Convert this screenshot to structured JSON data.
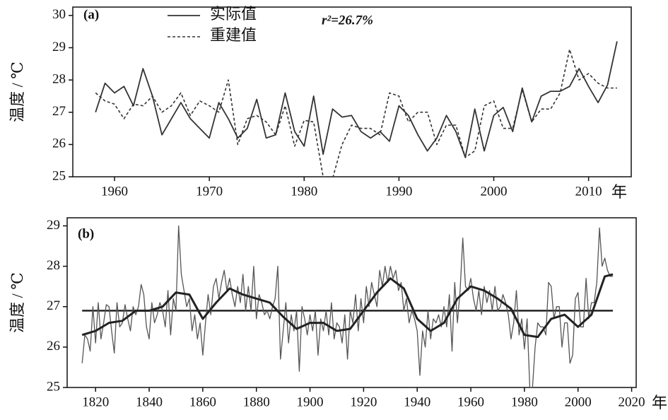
{
  "chart_data": [
    {
      "type": "line",
      "label": "(a)",
      "ylabel": "温度 / ℃",
      "xunit": "年",
      "annotation": "r²=26.7%",
      "xlim": [
        1955.6,
        2014.5
      ],
      "ylim": [
        25,
        30.26
      ],
      "xticks": [
        1960,
        1970,
        1980,
        1990,
        2000,
        2010
      ],
      "yticks": [
        25,
        26,
        27,
        28,
        29,
        30
      ],
      "series": [
        {
          "name": "实际值",
          "color": "#333333",
          "style": "solid",
          "x": [
            1958,
            1959,
            1960,
            1961,
            1962,
            1963,
            1964,
            1965,
            1966,
            1967,
            1968,
            1969,
            1970,
            1971,
            1972,
            1973,
            1974,
            1975,
            1976,
            1977,
            1978,
            1979,
            1980,
            1981,
            1982,
            1983,
            1984,
            1985,
            1986,
            1987,
            1988,
            1989,
            1990,
            1991,
            1992,
            1993,
            1994,
            1995,
            1996,
            1997,
            1998,
            1999,
            2000,
            2001,
            2002,
            2003,
            2004,
            2005,
            2006,
            2007,
            2008,
            2009,
            2010,
            2011,
            2012,
            2013
          ],
          "values": [
            27.0,
            27.9,
            27.6,
            27.8,
            27.2,
            28.35,
            27.5,
            26.3,
            26.8,
            27.3,
            26.8,
            26.5,
            26.2,
            27.3,
            26.8,
            26.2,
            26.5,
            27.4,
            26.2,
            26.3,
            27.6,
            26.4,
            25.95,
            27.5,
            25.7,
            27.1,
            26.85,
            26.9,
            26.4,
            26.2,
            26.4,
            26.1,
            27.2,
            26.9,
            26.3,
            25.8,
            26.2,
            26.9,
            26.4,
            25.6,
            27.1,
            25.8,
            26.9,
            27.15,
            26.4,
            27.75,
            26.7,
            27.5,
            27.65,
            27.65,
            27.8,
            28.35,
            27.8,
            27.3,
            27.85,
            29.2
          ]
        },
        {
          "name": "重建值",
          "color": "#333333",
          "style": "dashed",
          "x": [
            1958,
            1959,
            1960,
            1961,
            1962,
            1963,
            1964,
            1965,
            1966,
            1967,
            1968,
            1969,
            1970,
            1971,
            1972,
            1973,
            1974,
            1975,
            1976,
            1977,
            1978,
            1979,
            1980,
            1981,
            1982,
            1983,
            1984,
            1985,
            1986,
            1987,
            1988,
            1989,
            1990,
            1991,
            1992,
            1993,
            1994,
            1995,
            1996,
            1997,
            1998,
            1999,
            2000,
            2001,
            2002,
            2003,
            2004,
            2005,
            2006,
            2007,
            2008,
            2009,
            2010,
            2011,
            2012,
            2013
          ],
          "values": [
            27.6,
            27.35,
            27.25,
            26.8,
            27.25,
            27.2,
            27.5,
            27.0,
            27.2,
            27.6,
            26.9,
            27.35,
            27.2,
            27.0,
            28.0,
            26.0,
            26.8,
            26.9,
            26.7,
            26.3,
            27.2,
            25.95,
            26.75,
            26.7,
            25.0,
            24.95,
            26.0,
            26.6,
            26.5,
            26.5,
            26.3,
            27.6,
            27.5,
            26.7,
            27.0,
            27.0,
            26.0,
            26.6,
            26.6,
            25.6,
            25.8,
            27.2,
            27.35,
            26.5,
            26.5,
            27.7,
            26.7,
            27.1,
            27.1,
            27.6,
            28.95,
            28.0,
            28.2,
            27.9,
            27.75,
            27.75
          ]
        }
      ]
    },
    {
      "type": "line",
      "label": "(b)",
      "ylabel": "温度 / ℃",
      "xunit": "年",
      "xlim": [
        1809.4,
        2021.7
      ],
      "ylim": [
        25,
        29.2
      ],
      "xticks": [
        1820,
        1840,
        1860,
        1880,
        1900,
        1920,
        1940,
        1960,
        1980,
        2000,
        2020
      ],
      "yticks": [
        25,
        26,
        27,
        28,
        29
      ],
      "hline": 26.9,
      "series": [
        {
          "color": "#555555",
          "style": "thin",
          "x": [
            1815,
            1816,
            1817,
            1818,
            1819,
            1820,
            1821,
            1822,
            1823,
            1824,
            1825,
            1826,
            1827,
            1828,
            1829,
            1830,
            1831,
            1832,
            1833,
            1834,
            1835,
            1836,
            1837,
            1838,
            1839,
            1840,
            1841,
            1842,
            1843,
            1844,
            1845,
            1846,
            1847,
            1848,
            1849,
            1850,
            1851,
            1852,
            1853,
            1854,
            1855,
            1856,
            1857,
            1858,
            1859,
            1860,
            1861,
            1862,
            1863,
            1864,
            1865,
            1866,
            1867,
            1868,
            1869,
            1870,
            1871,
            1872,
            1873,
            1874,
            1875,
            1876,
            1877,
            1878,
            1879,
            1880,
            1881,
            1882,
            1883,
            1884,
            1885,
            1886,
            1887,
            1888,
            1889,
            1890,
            1891,
            1892,
            1893,
            1894,
            1895,
            1896,
            1897,
            1898,
            1899,
            1900,
            1901,
            1902,
            1903,
            1904,
            1905,
            1906,
            1907,
            1908,
            1909,
            1910,
            1911,
            1912,
            1913,
            1914,
            1915,
            1916,
            1917,
            1918,
            1919,
            1920,
            1921,
            1922,
            1923,
            1924,
            1925,
            1926,
            1927,
            1928,
            1929,
            1930,
            1931,
            1932,
            1933,
            1934,
            1935,
            1936,
            1937,
            1938,
            1939,
            1940,
            1941,
            1942,
            1943,
            1944,
            1945,
            1946,
            1947,
            1948,
            1949,
            1950,
            1951,
            1952,
            1953,
            1954,
            1955,
            1956,
            1957,
            1958,
            1959,
            1960,
            1961,
            1962,
            1963,
            1964,
            1965,
            1966,
            1967,
            1968,
            1969,
            1970,
            1971,
            1972,
            1973,
            1974,
            1975,
            1976,
            1977,
            1978,
            1979,
            1980,
            1981,
            1982,
            1983,
            1984,
            1985,
            1986,
            1987,
            1988,
            1989,
            1990,
            1991,
            1992,
            1993,
            1994,
            1995,
            1996,
            1997,
            1998,
            1999,
            2000,
            2001,
            2002,
            2003,
            2004,
            2005,
            2006,
            2007,
            2008,
            2009,
            2010,
            2011,
            2012,
            2013
          ],
          "values": [
            25.6,
            26.3,
            26.2,
            25.9,
            27.0,
            26.1,
            27.1,
            26.2,
            26.6,
            27.05,
            27.0,
            26.4,
            25.85,
            27.1,
            26.5,
            26.6,
            27.05,
            26.7,
            26.4,
            27.0,
            26.8,
            27.0,
            27.55,
            27.3,
            26.5,
            26.2,
            27.1,
            26.6,
            26.8,
            27.1,
            26.9,
            26.5,
            27.4,
            26.3,
            27.2,
            26.9,
            29.0,
            27.8,
            27.4,
            27.0,
            27.2,
            26.4,
            26.8,
            26.2,
            26.6,
            25.8,
            26.6,
            27.3,
            26.8,
            27.5,
            27.7,
            27.2,
            27.6,
            27.9,
            27.4,
            27.7,
            27.3,
            27.0,
            27.5,
            27.1,
            27.8,
            26.9,
            27.5,
            26.9,
            28.0,
            26.7,
            27.3,
            27.1,
            26.8,
            26.9,
            26.7,
            27.0,
            27.2,
            28.0,
            25.7,
            26.4,
            27.1,
            26.1,
            26.8,
            26.4,
            26.9,
            25.4,
            27.0,
            26.7,
            26.3,
            26.8,
            26.4,
            26.9,
            25.8,
            26.7,
            26.4,
            26.9,
            26.3,
            27.1,
            26.2,
            26.6,
            26.5,
            26.1,
            26.8,
            25.7,
            26.9,
            26.6,
            27.3,
            26.4,
            27.2,
            26.6,
            27.5,
            27.0,
            27.6,
            27.3,
            27.0,
            27.9,
            27.5,
            28.0,
            27.6,
            28.0,
            27.7,
            27.9,
            27.4,
            27.6,
            26.9,
            27.2,
            26.6,
            26.9,
            26.7,
            26.4,
            25.3,
            26.4,
            26.0,
            26.9,
            26.2,
            26.7,
            26.6,
            26.8,
            26.5,
            27.0,
            26.5,
            27.3,
            25.9,
            27.6,
            26.6,
            27.4,
            28.7,
            27.5,
            27.4,
            27.7,
            27.2,
            26.9,
            27.4,
            26.8,
            27.5,
            27.1,
            27.4,
            26.9,
            27.5,
            26.9,
            27.0,
            27.3,
            27.1,
            26.8,
            26.2,
            26.6,
            27.4,
            26.3,
            26.7,
            25.95,
            26.7,
            25.0,
            25.0,
            26.0,
            26.6,
            26.5,
            26.5,
            26.3,
            27.6,
            27.5,
            26.7,
            27.0,
            27.0,
            26.0,
            26.6,
            26.6,
            25.6,
            25.8,
            27.2,
            27.35,
            26.5,
            26.5,
            27.7,
            26.7,
            27.1,
            27.1,
            27.6,
            28.95,
            28.0,
            28.2,
            27.9,
            27.75,
            27.75
          ]
        },
        {
          "color": "#222222",
          "style": "thick",
          "x": [
            1815,
            1820,
            1825,
            1830,
            1835,
            1840,
            1845,
            1850,
            1855,
            1860,
            1865,
            1870,
            1875,
            1880,
            1885,
            1890,
            1895,
            1900,
            1905,
            1910,
            1915,
            1920,
            1925,
            1930,
            1935,
            1940,
            1945,
            1950,
            1955,
            1960,
            1965,
            1970,
            1975,
            1980,
            1985,
            1990,
            1995,
            2000,
            2005,
            2010,
            2013
          ],
          "values": [
            26.3,
            26.4,
            26.6,
            26.65,
            26.9,
            26.9,
            27.0,
            27.35,
            27.3,
            26.7,
            27.1,
            27.45,
            27.3,
            27.2,
            27.1,
            26.75,
            26.45,
            26.6,
            26.6,
            26.4,
            26.45,
            26.9,
            27.35,
            27.7,
            27.45,
            26.7,
            26.4,
            26.6,
            27.2,
            27.5,
            27.4,
            27.2,
            26.95,
            26.3,
            26.25,
            26.7,
            26.8,
            26.5,
            26.8,
            27.75,
            27.8
          ]
        }
      ]
    }
  ]
}
